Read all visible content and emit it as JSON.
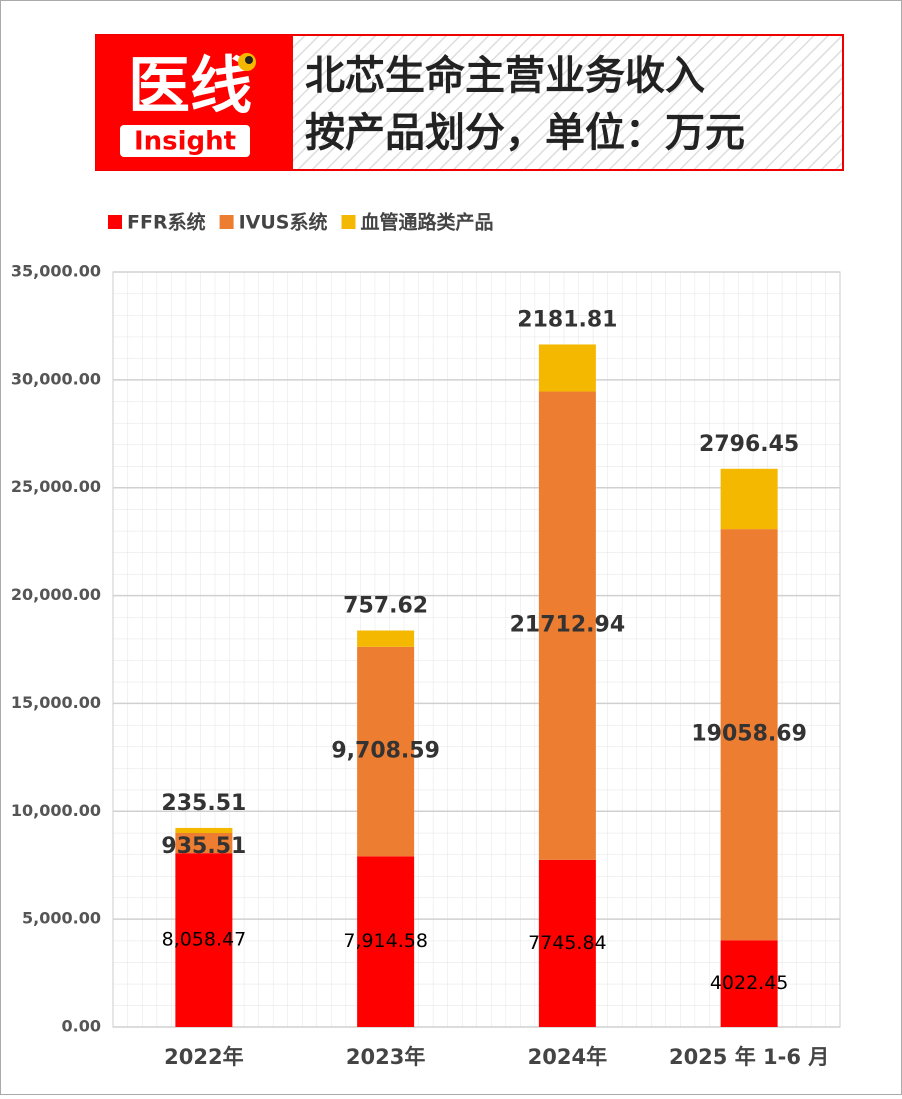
{
  "header": {
    "logo": "医线",
    "logo_sub": "Insight",
    "title_lines": [
      "北芯生命主营业务收入",
      "按产品划分，单位：万元"
    ]
  },
  "chart_data": {
    "type": "stacked_bar",
    "categories": [
      "2022年",
      "2023年",
      "2024年",
      "2025 年 1-6 月"
    ],
    "series": [
      {
        "name": "FFR系统",
        "color": "#ff0000",
        "values": [
          8058.47,
          7914.58,
          7745.84,
          4022.45
        ],
        "value_labels": [
          "8,058.47",
          "7,914.58",
          "7745.84",
          "4022.45"
        ]
      },
      {
        "name": "IVUS系统",
        "color": "#ed7d31",
        "values": [
          935.51,
          9708.59,
          21712.94,
          19058.69
        ],
        "value_labels": [
          "935.51",
          "9,708.59",
          "21712.94",
          "19058.69"
        ]
      },
      {
        "name": "血管通路类产品",
        "color": "#f4b800",
        "values": [
          235.51,
          757.62,
          2181.81,
          2796.45
        ]
      }
    ],
    "ylim": [
      0,
      35000
    ],
    "yticks": [
      {
        "value": 0,
        "label": "0.00"
      },
      {
        "value": 5000,
        "label": "5,000.00"
      },
      {
        "value": 10000,
        "label": "10,000.00"
      },
      {
        "value": 15000,
        "label": "15,000.00"
      },
      {
        "value": 20000,
        "label": "20,000.00"
      },
      {
        "value": 25000,
        "label": "25,000.00"
      },
      {
        "value": 30000,
        "label": "30,000.00"
      },
      {
        "value": 35000,
        "label": "35,000.00"
      }
    ],
    "grid": true,
    "legend": "top"
  }
}
